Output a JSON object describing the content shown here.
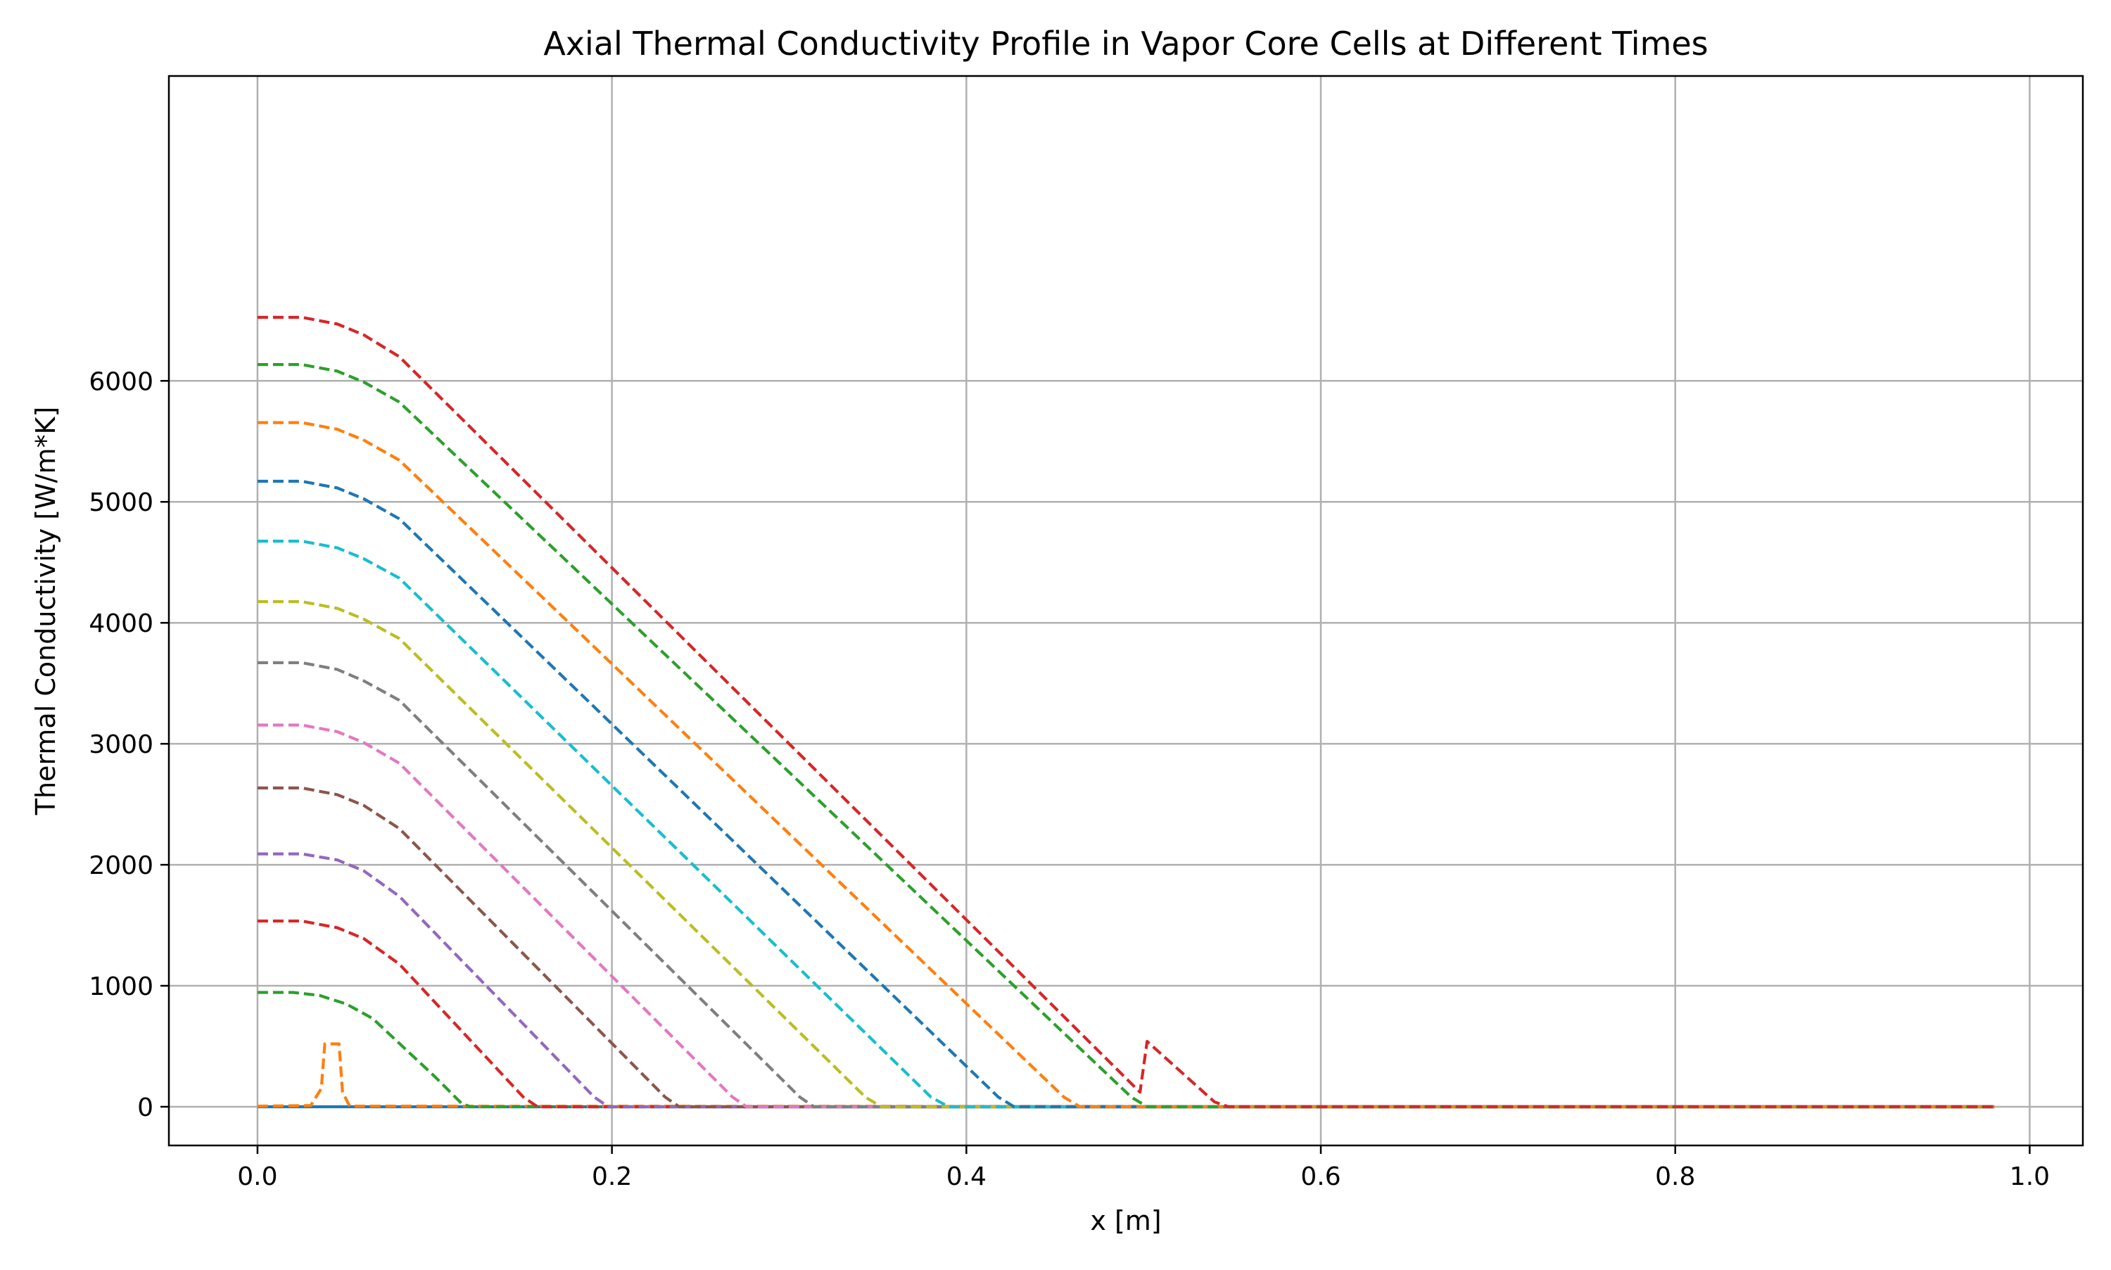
{
  "chart_data": {
    "type": "line",
    "title": "Axial Thermal Conductivity Profile in Vapor Core Cells at Different Times",
    "xlabel": "x [m]",
    "ylabel": "Thermal Conductivity [W/m*K]",
    "xlim": [
      -0.05,
      1.03
    ],
    "ylim": [
      -320,
      8520
    ],
    "xticks": [
      0.0,
      0.2,
      0.4,
      0.6,
      0.8,
      1.0
    ],
    "xtick_labels": [
      "0.0",
      "0.2",
      "0.4",
      "0.6",
      "0.8",
      "1.0"
    ],
    "yticks": [
      0,
      1000,
      2000,
      3000,
      4000,
      5000,
      6000
    ],
    "ytick_labels": [
      "0",
      "1000",
      "2000",
      "3000",
      "4000",
      "5000",
      "6000"
    ],
    "grid": true,
    "series": [
      {
        "color": "#1f77b4",
        "style": "solid",
        "points": [
          [
            0.0,
            0
          ],
          [
            0.98,
            0
          ]
        ]
      },
      {
        "color": "#ff7f0e",
        "style": "dashed",
        "points": [
          [
            0.0,
            5
          ],
          [
            0.03,
            10
          ],
          [
            0.036,
            150
          ],
          [
            0.038,
            520
          ],
          [
            0.046,
            520
          ],
          [
            0.048,
            120
          ],
          [
            0.052,
            5
          ],
          [
            0.98,
            0
          ]
        ]
      },
      {
        "color": "#2ca02c",
        "style": "dashed",
        "points": [
          [
            0.0,
            945
          ],
          [
            0.02,
            945
          ],
          [
            0.035,
            920
          ],
          [
            0.05,
            850
          ],
          [
            0.065,
            730
          ],
          [
            0.1,
            250
          ],
          [
            0.115,
            30
          ],
          [
            0.12,
            0
          ],
          [
            0.98,
            0
          ]
        ]
      },
      {
        "color": "#d62728",
        "style": "dashed",
        "points": [
          [
            0.0,
            1535
          ],
          [
            0.025,
            1535
          ],
          [
            0.045,
            1480
          ],
          [
            0.06,
            1390
          ],
          [
            0.08,
            1180
          ],
          [
            0.15,
            80
          ],
          [
            0.158,
            0
          ],
          [
            0.98,
            0
          ]
        ]
      },
      {
        "color": "#9467bd",
        "style": "dashed",
        "points": [
          [
            0.0,
            2090
          ],
          [
            0.025,
            2090
          ],
          [
            0.045,
            2040
          ],
          [
            0.06,
            1950
          ],
          [
            0.08,
            1740
          ],
          [
            0.19,
            80
          ],
          [
            0.198,
            0
          ],
          [
            0.98,
            0
          ]
        ]
      },
      {
        "color": "#8c564b",
        "style": "dashed",
        "points": [
          [
            0.0,
            2635
          ],
          [
            0.025,
            2635
          ],
          [
            0.045,
            2580
          ],
          [
            0.06,
            2490
          ],
          [
            0.08,
            2300
          ],
          [
            0.23,
            80
          ],
          [
            0.238,
            0
          ],
          [
            0.98,
            0
          ]
        ]
      },
      {
        "color": "#e377c2",
        "style": "dashed",
        "points": [
          [
            0.0,
            3155
          ],
          [
            0.025,
            3155
          ],
          [
            0.045,
            3100
          ],
          [
            0.06,
            3010
          ],
          [
            0.08,
            2840
          ],
          [
            0.268,
            80
          ],
          [
            0.276,
            0
          ],
          [
            0.98,
            0
          ]
        ]
      },
      {
        "color": "#7f7f7f",
        "style": "dashed",
        "points": [
          [
            0.0,
            3670
          ],
          [
            0.025,
            3670
          ],
          [
            0.045,
            3615
          ],
          [
            0.06,
            3520
          ],
          [
            0.08,
            3360
          ],
          [
            0.306,
            80
          ],
          [
            0.314,
            0
          ],
          [
            0.98,
            0
          ]
        ]
      },
      {
        "color": "#bcbd22",
        "style": "dashed",
        "points": [
          [
            0.0,
            4175
          ],
          [
            0.025,
            4175
          ],
          [
            0.045,
            4120
          ],
          [
            0.06,
            4030
          ],
          [
            0.08,
            3870
          ],
          [
            0.343,
            80
          ],
          [
            0.352,
            0
          ],
          [
            0.98,
            0
          ]
        ]
      },
      {
        "color": "#17becf",
        "style": "dashed",
        "points": [
          [
            0.0,
            4675
          ],
          [
            0.025,
            4675
          ],
          [
            0.045,
            4620
          ],
          [
            0.06,
            4530
          ],
          [
            0.08,
            4370
          ],
          [
            0.38,
            80
          ],
          [
            0.39,
            0
          ],
          [
            0.98,
            0
          ]
        ]
      },
      {
        "color": "#1f77b4",
        "style": "dashed",
        "points": [
          [
            0.0,
            5170
          ],
          [
            0.025,
            5170
          ],
          [
            0.045,
            5115
          ],
          [
            0.06,
            5025
          ],
          [
            0.08,
            4860
          ],
          [
            0.418,
            80
          ],
          [
            0.427,
            0
          ],
          [
            0.98,
            0
          ]
        ]
      },
      {
        "color": "#ff7f0e",
        "style": "dashed",
        "points": [
          [
            0.0,
            5655
          ],
          [
            0.025,
            5655
          ],
          [
            0.045,
            5600
          ],
          [
            0.06,
            5510
          ],
          [
            0.08,
            5345
          ],
          [
            0.455,
            80
          ],
          [
            0.464,
            0
          ],
          [
            0.98,
            0
          ]
        ]
      },
      {
        "color": "#2ca02c",
        "style": "dashed",
        "points": [
          [
            0.0,
            6135
          ],
          [
            0.025,
            6135
          ],
          [
            0.045,
            6080
          ],
          [
            0.06,
            5990
          ],
          [
            0.08,
            5825
          ],
          [
            0.493,
            80
          ],
          [
            0.502,
            0
          ],
          [
            0.98,
            0
          ]
        ]
      },
      {
        "color": "#d62728",
        "style": "dashed",
        "points": [
          [
            0.0,
            6525
          ],
          [
            0.025,
            6525
          ],
          [
            0.045,
            6470
          ],
          [
            0.06,
            6380
          ],
          [
            0.08,
            6200
          ],
          [
            0.498,
            120
          ],
          [
            0.502,
            540
          ],
          [
            0.54,
            40
          ],
          [
            0.548,
            0
          ],
          [
            0.98,
            0
          ]
        ]
      }
    ]
  }
}
